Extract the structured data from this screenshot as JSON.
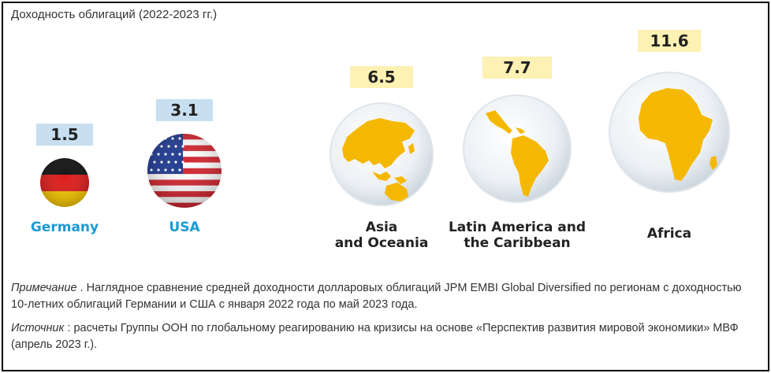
{
  "chart_data": {
    "type": "bar",
    "title": "Доходность облигаций (2022-2023 гг.)",
    "categories": [
      "Germany",
      "USA",
      "Asia and Oceania",
      "Latin America and the Caribbean",
      "Africa"
    ],
    "category_lines": [
      [
        "Germany"
      ],
      [
        "USA"
      ],
      [
        "Asia",
        "and Oceania"
      ],
      [
        "Latin America and",
        "the Caribbean"
      ],
      [
        "Africa"
      ]
    ],
    "values": [
      1.5,
      3.1,
      6.5,
      7.7,
      11.6
    ],
    "value_labels": [
      "1.5",
      "3.1",
      "6.5",
      "7.7",
      "11.6"
    ],
    "encoding": "circle-size",
    "icons": [
      "germany-flag-icon",
      "usa-flag-icon",
      "asia-globe-icon",
      "latin-america-globe-icon",
      "africa-globe-icon"
    ],
    "colors": {
      "country_label": "#1a9ad6",
      "region_label": "#222222",
      "country_value_box": "#c7dff0",
      "region_value_box": "#fdf1b3",
      "continent_fill": "#f5b800",
      "globe_fill": "#e8eef3"
    }
  },
  "notes": {
    "note_label": "Примечание",
    "note_text": " . Наглядное сравнение средней доходности долларовых облигаций JPM EMBI Global Diversified по регионам с доходностью 10-летних облигаций Германии и США с января 2022 года по май 2023 года.",
    "source_label": "Источник",
    "source_text": " : расчеты Группы ООН по глобальному реагированию на кризисы на основе «Перспектив развития мировой экономики» МВФ (апрель 2023 г.)."
  }
}
